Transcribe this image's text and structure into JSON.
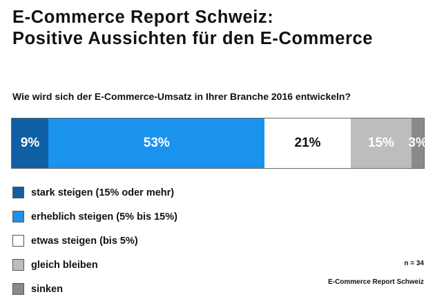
{
  "report": {
    "title_line1": "E-Commerce Report Schweiz:",
    "title_line2": "Positive Aussichten für den E-Commerce"
  },
  "chart_data": {
    "type": "bar",
    "orientation": "horizontal-stacked",
    "title": "Wie wird sich der E-Commerce-Umsatz in Ihrer Branche 2016 entwickeln?",
    "xlabel": "",
    "ylabel": "",
    "unit": "%",
    "categories": [
      "stark steigen (15% oder mehr)",
      "erheblich steigen (5% bis 15%)",
      "etwas steigen (bis 5%)",
      "gleich bleiben",
      "sinken"
    ],
    "values": [
      9,
      53,
      21,
      15,
      3
    ],
    "data_labels": [
      "9%",
      "53%",
      "21%",
      "15%",
      "3%"
    ],
    "colors": [
      "#0f5fa5",
      "#1a93ef",
      "#ffffff",
      "#bdbdbd",
      "#8a8a8a"
    ],
    "label_colors": [
      "#ffffff",
      "#ffffff",
      "#111111",
      "#ffffff",
      "#ffffff"
    ],
    "legend_labels": [
      "stark steigen (15% oder mehr)",
      "erheblich steigen (5% bis 15%)",
      "etwas steigen (bis 5%)",
      "gleich bleiben",
      "sinken"
    ],
    "legend_placement": "bottom-left",
    "grid": false
  },
  "footer": {
    "sample_size": "n = 34",
    "source": "E-Commerce Report Schweiz"
  }
}
